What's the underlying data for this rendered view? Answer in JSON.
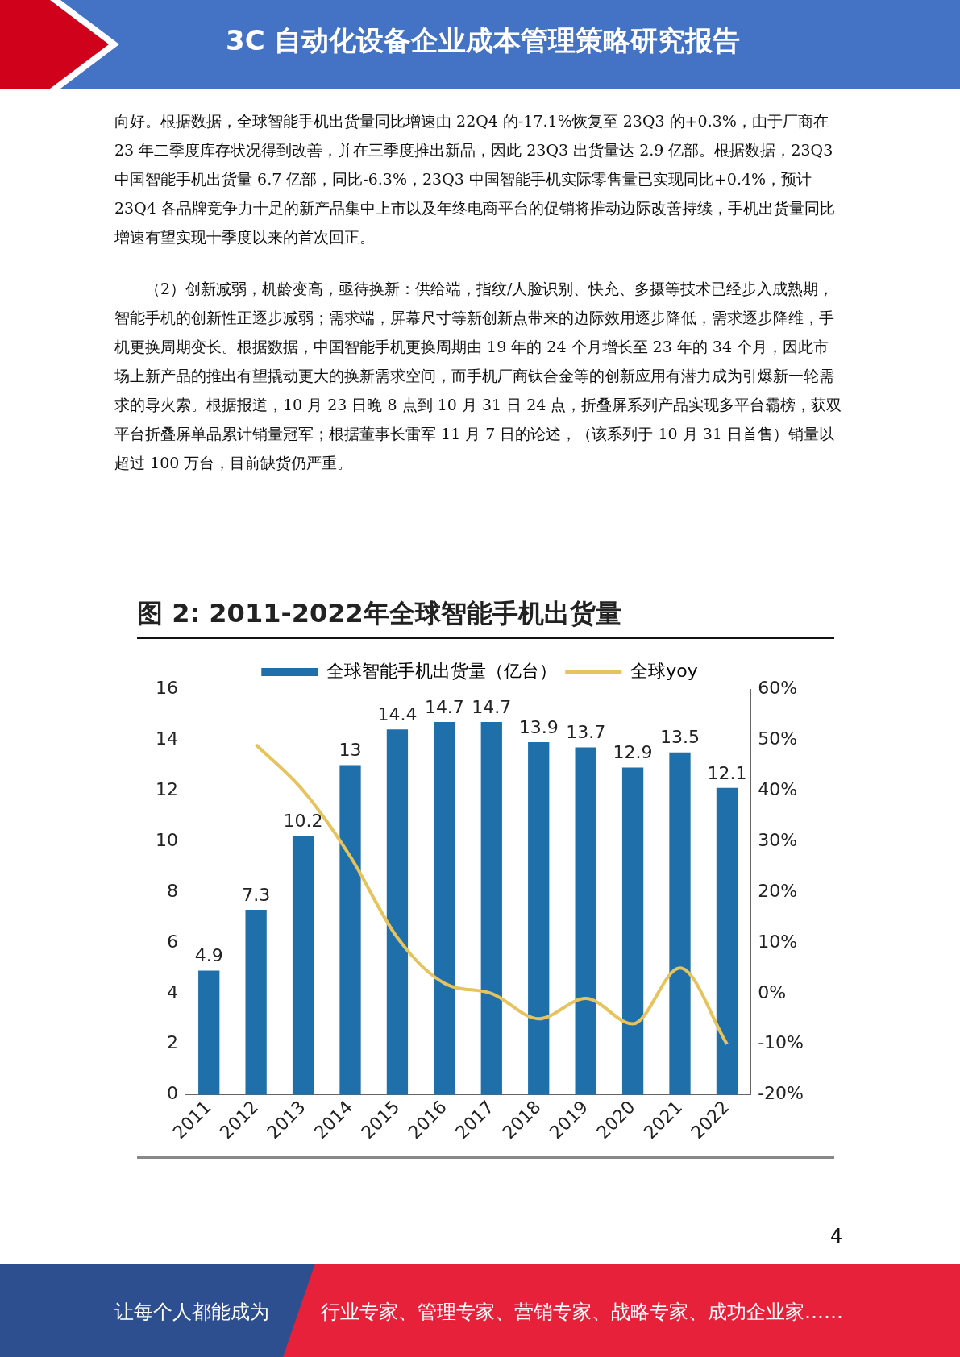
{
  "chart_data": {
    "type": "bar",
    "title": "图 2: 2011-2022年全球智能手机出货量",
    "annotations": [
      "3C 自动化设备企业成本管理策略研究报告",
      "向好。根据数据，全球智能手机出货量同比增速由 22Q4 的-17.1%恢复至 23Q3 的+0.3%，由于厂商在 23 年二季度库存状况得到改善，并在三季度推出新品，因此 23Q3 出货量达 2.9 亿部。根据数据，23Q3 中国智能手机出货量 6.7 亿部，同比-6.3%，23Q3 中国智能手机实际零售量已实现同比+0.4%，预计 23Q4 各品牌竞争力十足的新产品集中上市以及年终电商平台的促销将推动边际改善持续，手机出货量同比增速有望实现十季度以来的首次回正。",
      "（2）创新减弱，机龄变高，亟待换新：供给端，指纹/人脸识别、快充、多摄等技术已经步入成熟期，智能手机的创新性正逐步减弱；需求端，屏幕尺寸等新创新点带来的边际效用逐步降低，需求逐步降维，手机更换周期变长。根据数据，中国智能手机更换周期由 19 年的 24 个月增长至 23 年的 34 个月，因此市场上新产品的推出有望撬动更大的换新需求空间，而手机厂商钛合金等的创新应用有潜力成为引爆新一轮需求的导火索。根据报道，10 月 23 日晚 8 点到 10 月 31 日 24 点，折叠屏系列产品实现多平台霸榜，获双平台折叠屏单品累计销量冠军；根据董事长雷军 11 月 7 日的论述，（该系列于 10 月 31 日首售）销量以超过 100 万台，目前缺货仍严重。",
      "4",
      "让每个人都能成为",
      "行业专家、管理专家、营销专家、战略专家、成功企业家……"
    ],
    "categories": [
      "2011",
      "2012",
      "2013",
      "2014",
      "2015",
      "2016",
      "2017",
      "2018",
      "2019",
      "2020",
      "2021",
      "2022"
    ],
    "series": [
      {
        "name": "全球智能手机出货量（亿台）",
        "color": "#1f6fab",
        "values": [
          4.9,
          7.3,
          10.2,
          13,
          14.4,
          14.7,
          14.7,
          13.9,
          13.7,
          12.9,
          13.5,
          12.1
        ],
        "value_labels": [
          "4.9",
          "7.3",
          "10.2",
          "13",
          "14.4",
          "14.7",
          "14.7",
          "13.9",
          "13.7",
          "12.9",
          "13.5",
          "12.1"
        ]
      },
      {
        "name": "全球yoy",
        "type": "line",
        "axis": "y2",
        "color": "#e6c35c",
        "values": [
          null,
          49,
          40,
          27,
          11,
          2,
          0,
          -5,
          -1,
          -6,
          5,
          -10
        ]
      }
    ],
    "ylim": [
      0,
      16
    ],
    "yticks": [
      0,
      2,
      4,
      6,
      8,
      10,
      12,
      14,
      16
    ],
    "y2lim": [
      -20,
      60
    ],
    "y2ticks": [
      {
        "value": -20,
        "label": "-20%"
      },
      {
        "value": -10,
        "label": "-10%"
      },
      {
        "value": 0,
        "label": "0%"
      },
      {
        "value": 10,
        "label": "10%"
      },
      {
        "value": 20,
        "label": "20%"
      },
      {
        "value": 30,
        "label": "30%"
      },
      {
        "value": 40,
        "label": "40%"
      },
      {
        "value": 50,
        "label": "50%"
      },
      {
        "value": 60,
        "label": "60%"
      }
    ],
    "grid": false,
    "legend": "top",
    "marker": "none",
    "line_style": "solid"
  }
}
